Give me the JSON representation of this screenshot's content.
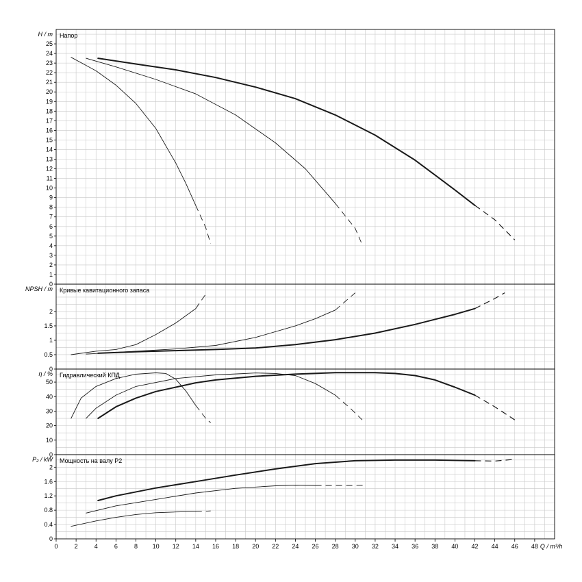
{
  "chart_data": {
    "type": "line",
    "x_axis": {
      "label": "Q / m³/h",
      "range": [
        0,
        50
      ],
      "tick_labels": [
        "0",
        "2",
        "4",
        "6",
        "8",
        "10",
        "12",
        "14",
        "16",
        "18",
        "20",
        "22",
        "24",
        "26",
        "28",
        "30",
        "32",
        "34",
        "36",
        "38",
        "40",
        "42",
        "44",
        "46",
        "48"
      ],
      "grid": true
    },
    "panels": [
      {
        "key": "head",
        "title": "Напор",
        "ylabel": "H / m",
        "ylim": [
          0,
          26.5
        ],
        "tick_labels": [
          "0",
          "1",
          "2",
          "3",
          "4",
          "5",
          "6",
          "7",
          "8",
          "9",
          "10",
          "11",
          "12",
          "13",
          "14",
          "15",
          "16",
          "17",
          "18",
          "19",
          "20",
          "21",
          "22",
          "23",
          "24",
          "25"
        ],
        "series": [
          {
            "stroke_width": 0.9,
            "solid": [
              [
                1.5,
                23.6
              ],
              [
                4,
                22.2
              ],
              [
                6,
                20.7
              ],
              [
                8,
                18.8
              ],
              [
                10,
                16.2
              ],
              [
                12,
                12.6
              ],
              [
                13,
                10.5
              ],
              [
                14,
                8.2
              ]
            ],
            "dashed": [
              [
                14,
                8.2
              ],
              [
                15,
                5.9
              ],
              [
                15.5,
                4.2
              ]
            ]
          },
          {
            "stroke_width": 0.9,
            "solid": [
              [
                3,
                23.5
              ],
              [
                6,
                22.6
              ],
              [
                10,
                21.3
              ],
              [
                14,
                19.8
              ],
              [
                18,
                17.6
              ],
              [
                22,
                14.7
              ],
              [
                25,
                12
              ],
              [
                28,
                8.4
              ]
            ],
            "dashed": [
              [
                28,
                8.4
              ],
              [
                30,
                5.8
              ],
              [
                30.7,
                4.1
              ]
            ]
          },
          {
            "stroke_width": 2,
            "solid": [
              [
                4.2,
                23.5
              ],
              [
                8,
                22.9
              ],
              [
                12,
                22.3
              ],
              [
                16,
                21.5
              ],
              [
                20,
                20.5
              ],
              [
                24,
                19.3
              ],
              [
                28,
                17.6
              ],
              [
                32,
                15.5
              ],
              [
                36,
                12.9
              ],
              [
                40,
                9.8
              ],
              [
                42,
                8.2
              ]
            ],
            "dashed": [
              [
                42,
                8.2
              ],
              [
                44,
                6.7
              ],
              [
                46,
                4.6
              ]
            ]
          }
        ]
      },
      {
        "key": "npsh",
        "title": "Кривые кавитационного запаса",
        "ylabel": "NPSH / m",
        "ylim": [
          0,
          2.95
        ],
        "tick_labels": [
          "0",
          "0.5",
          "1",
          "1.5",
          "2"
        ],
        "series": [
          {
            "stroke_width": 0.9,
            "solid": [
              [
                1.5,
                0.5
              ],
              [
                4,
                0.62
              ],
              [
                6,
                0.68
              ],
              [
                8,
                0.85
              ],
              [
                10,
                1.2
              ],
              [
                12,
                1.6
              ],
              [
                14,
                2.1
              ]
            ],
            "dashed": [
              [
                14,
                2.1
              ],
              [
                15,
                2.6
              ]
            ]
          },
          {
            "stroke_width": 0.9,
            "solid": [
              [
                3,
                0.52
              ],
              [
                8,
                0.62
              ],
              [
                12,
                0.7
              ],
              [
                16,
                0.82
              ],
              [
                20,
                1.1
              ],
              [
                24,
                1.5
              ],
              [
                26,
                1.75
              ],
              [
                28,
                2.05
              ]
            ],
            "dashed": [
              [
                28,
                2.05
              ],
              [
                30,
                2.65
              ]
            ]
          },
          {
            "stroke_width": 2,
            "solid": [
              [
                4.2,
                0.55
              ],
              [
                8,
                0.6
              ],
              [
                12,
                0.64
              ],
              [
                16,
                0.68
              ],
              [
                20,
                0.73
              ],
              [
                24,
                0.85
              ],
              [
                28,
                1.02
              ],
              [
                32,
                1.25
              ],
              [
                36,
                1.55
              ],
              [
                40,
                1.9
              ],
              [
                42,
                2.1
              ]
            ],
            "dashed": [
              [
                42,
                2.1
              ],
              [
                44,
                2.45
              ],
              [
                45,
                2.65
              ]
            ]
          }
        ]
      },
      {
        "key": "eff",
        "title": "Гидравлический КПД",
        "ylabel": "η / %",
        "ylim": [
          0,
          59
        ],
        "tick_labels": [
          "0",
          "10",
          "20",
          "30",
          "40",
          "50"
        ],
        "series": [
          {
            "stroke_width": 0.9,
            "solid": [
              [
                1.5,
                25
              ],
              [
                2.5,
                39
              ],
              [
                4,
                47
              ],
              [
                6,
                52.5
              ],
              [
                8,
                55.5
              ],
              [
                10,
                56.4
              ],
              [
                11,
                56
              ],
              [
                12,
                52
              ],
              [
                13,
                44
              ],
              [
                14,
                34
              ]
            ],
            "dashed": [
              [
                14,
                34
              ],
              [
                15,
                25
              ],
              [
                15.5,
                22
              ]
            ]
          },
          {
            "stroke_width": 0.9,
            "solid": [
              [
                3,
                25
              ],
              [
                4,
                32
              ],
              [
                6,
                41
              ],
              [
                8,
                47
              ],
              [
                12,
                52.5
              ],
              [
                16,
                55
              ],
              [
                20,
                56.3
              ],
              [
                22,
                56
              ],
              [
                24,
                54.5
              ],
              [
                26,
                49
              ],
              [
                28,
                41
              ]
            ],
            "dashed": [
              [
                28,
                41
              ],
              [
                29.5,
                32
              ],
              [
                30.7,
                24
              ]
            ]
          },
          {
            "stroke_width": 2,
            "solid": [
              [
                4.2,
                25
              ],
              [
                6,
                33
              ],
              [
                8,
                39
              ],
              [
                10,
                43.5
              ],
              [
                12,
                46.5
              ],
              [
                14,
                49.5
              ],
              [
                16,
                51.5
              ],
              [
                20,
                54
              ],
              [
                24,
                55.5
              ],
              [
                28,
                56.5
              ],
              [
                32,
                56.5
              ],
              [
                34,
                56
              ],
              [
                36,
                54.5
              ],
              [
                38,
                51.5
              ],
              [
                40,
                46.5
              ],
              [
                42,
                41
              ]
            ],
            "dashed": [
              [
                42,
                41
              ],
              [
                44,
                33
              ],
              [
                46,
                24
              ]
            ]
          }
        ]
      },
      {
        "key": "power",
        "title": "Мощность на валу P2",
        "ylabel": "P₂ / kW",
        "ylim": [
          0,
          2.35
        ],
        "tick_labels": [
          "0",
          "0.4",
          "0.8",
          "1.2",
          "1.6",
          "2"
        ],
        "series": [
          {
            "stroke_width": 0.9,
            "solid": [
              [
                1.5,
                0.35
              ],
              [
                4,
                0.5
              ],
              [
                6,
                0.6
              ],
              [
                8,
                0.68
              ],
              [
                10,
                0.73
              ],
              [
                12,
                0.75
              ],
              [
                14,
                0.76
              ]
            ],
            "dashed": [
              [
                14,
                0.76
              ],
              [
                15.5,
                0.78
              ]
            ]
          },
          {
            "stroke_width": 0.9,
            "solid": [
              [
                3,
                0.72
              ],
              [
                6,
                0.92
              ],
              [
                10,
                1.1
              ],
              [
                14,
                1.28
              ],
              [
                18,
                1.41
              ],
              [
                22,
                1.48
              ],
              [
                24,
                1.5
              ],
              [
                26,
                1.49
              ]
            ],
            "dashed": [
              [
                26,
                1.49
              ],
              [
                30,
                1.49
              ],
              [
                31,
                1.5
              ]
            ]
          },
          {
            "stroke_width": 2,
            "solid": [
              [
                4.2,
                1.07
              ],
              [
                6,
                1.2
              ],
              [
                10,
                1.42
              ],
              [
                14,
                1.6
              ],
              [
                18,
                1.78
              ],
              [
                22,
                1.95
              ],
              [
                26,
                2.1
              ],
              [
                30,
                2.18
              ],
              [
                34,
                2.2
              ],
              [
                38,
                2.2
              ],
              [
                42,
                2.18
              ]
            ],
            "dashed": [
              [
                42,
                2.18
              ],
              [
                44,
                2.17
              ],
              [
                46,
                2.22
              ]
            ]
          }
        ]
      }
    ]
  }
}
